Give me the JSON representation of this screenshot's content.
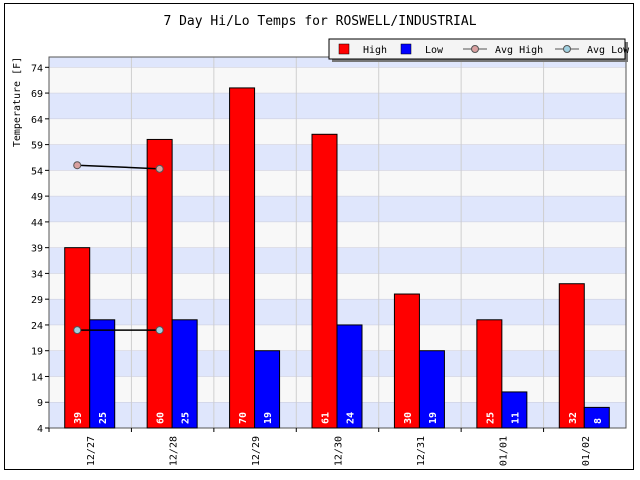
{
  "chart_data": {
    "type": "bar",
    "title": "7 Day Hi/Lo Temps for ROSWELL/INDUSTRIAL",
    "ylabel": "Temperature [F]",
    "xlabel": "",
    "ylim": [
      4,
      76
    ],
    "yticks": [
      4,
      9,
      14,
      19,
      24,
      29,
      34,
      39,
      44,
      49,
      54,
      59,
      64,
      69,
      74
    ],
    "categories": [
      "12/27",
      "12/28",
      "12/29",
      "12/30",
      "12/31",
      "01/01",
      "01/02"
    ],
    "series": [
      {
        "name": "High",
        "color": "#ff0000",
        "values": [
          39,
          60,
          70,
          61,
          30,
          25,
          32
        ]
      },
      {
        "name": "Low",
        "color": "#0000ff",
        "values": [
          25,
          25,
          19,
          24,
          19,
          11,
          8
        ]
      }
    ],
    "bar_labels": {
      "High": [
        "39",
        "60",
        "70",
        "61",
        "30",
        "25",
        "32"
      ],
      "Low": [
        "25",
        "25",
        "19",
        "24",
        "19",
        "11",
        "8"
      ]
    },
    "avg_series": [
      {
        "name": "Avg High",
        "marker_color": "#d9a0a0",
        "values": [
          55,
          54.3
        ]
      },
      {
        "name": "Avg Low",
        "marker_color": "#a0d0e0",
        "values": [
          23,
          23
        ]
      }
    ],
    "legend": {
      "placement": "top-right",
      "items": [
        "High",
        "Low",
        "Avg High",
        "Avg Low"
      ]
    },
    "grid": true,
    "band_colors": [
      "#dfe6fc",
      "#f8f8f8"
    ]
  }
}
